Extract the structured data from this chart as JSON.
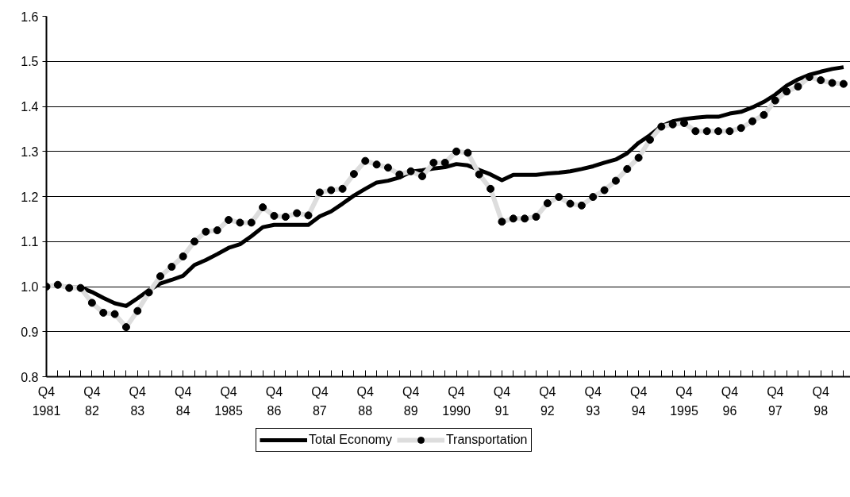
{
  "chart_data": {
    "type": "line",
    "categories": [
      "Q4\n1981",
      null,
      null,
      null,
      "Q4\n82",
      null,
      null,
      null,
      "Q4\n83",
      null,
      null,
      null,
      "Q4\n84",
      null,
      null,
      null,
      "Q4\n1985",
      null,
      null,
      null,
      "Q4\n86",
      null,
      null,
      null,
      "Q4\n87",
      null,
      null,
      null,
      "Q4\n88",
      null,
      null,
      null,
      "Q4\n89",
      null,
      null,
      null,
      "Q4\n1990",
      null,
      null,
      null,
      "Q4\n91",
      null,
      null,
      null,
      "Q4\n92",
      null,
      null,
      null,
      "Q4\n93",
      null,
      null,
      null,
      "Q4\n94",
      null,
      null,
      null,
      "Q4\n1995",
      null,
      null,
      null,
      "Q4\n96",
      null,
      null,
      null,
      "Q4\n97",
      null,
      null,
      null,
      "Q4\n98",
      null,
      null
    ],
    "series": [
      {
        "name": "Total Economy",
        "color": "#000000",
        "marker": "none",
        "values": [
          1.0,
          1.003,
          0.998,
          0.998,
          0.988,
          0.975,
          0.963,
          0.957,
          0.974,
          0.992,
          1.007,
          1.015,
          1.024,
          1.048,
          1.059,
          1.072,
          1.086,
          1.094,
          1.112,
          1.132,
          1.137,
          1.137,
          1.137,
          1.137,
          1.156,
          1.167,
          1.184,
          1.202,
          1.217,
          1.231,
          1.235,
          1.242,
          1.255,
          1.258,
          1.262,
          1.265,
          1.272,
          1.269,
          1.259,
          1.249,
          1.236,
          1.248,
          1.248,
          1.248,
          1.251,
          1.253,
          1.256,
          1.261,
          1.267,
          1.275,
          1.282,
          1.296,
          1.319,
          1.336,
          1.356,
          1.367,
          1.372,
          1.375,
          1.377,
          1.377,
          1.384,
          1.388,
          1.398,
          1.41,
          1.426,
          1.446,
          1.46,
          1.47,
          1.477,
          1.483,
          1.487
        ]
      },
      {
        "name": "Transportation",
        "color": "#000000",
        "marker": "circle",
        "values": [
          1.0,
          1.004,
          0.997,
          0.997,
          0.964,
          0.942,
          0.939,
          0.91,
          0.946,
          0.987,
          1.023,
          1.044,
          1.067,
          1.1,
          1.122,
          1.125,
          1.148,
          1.142,
          1.142,
          1.176,
          1.157,
          1.155,
          1.163,
          1.158,
          1.209,
          1.214,
          1.217,
          1.25,
          1.279,
          1.271,
          1.264,
          1.249,
          1.256,
          1.245,
          1.275,
          1.275,
          1.3,
          1.297,
          1.249,
          1.217,
          1.144,
          1.151,
          1.151,
          1.155,
          1.185,
          1.199,
          1.184,
          1.18,
          1.199,
          1.214,
          1.235,
          1.261,
          1.286,
          1.326,
          1.355,
          1.36,
          1.363,
          1.345,
          1.345,
          1.345,
          1.345,
          1.352,
          1.367,
          1.381,
          1.413,
          1.433,
          1.444,
          1.465,
          1.458,
          1.452,
          1.45
        ]
      }
    ],
    "ylim": [
      0.8,
      1.6
    ],
    "yticks": [
      {
        "value": 0.8,
        "label": "0.8"
      },
      {
        "value": 0.9,
        "label": "0.9"
      },
      {
        "value": 1.0,
        "label": "1.0"
      },
      {
        "value": 1.1,
        "label": "1.1"
      },
      {
        "value": 1.2,
        "label": "1.2"
      },
      {
        "value": 1.3,
        "label": "1.3"
      },
      {
        "value": 1.4,
        "label": "1.4"
      },
      {
        "value": 1.5,
        "label": "1.5"
      },
      {
        "value": 1.6,
        "label": "1.6"
      }
    ],
    "grid": "y",
    "legend": "bottom"
  }
}
